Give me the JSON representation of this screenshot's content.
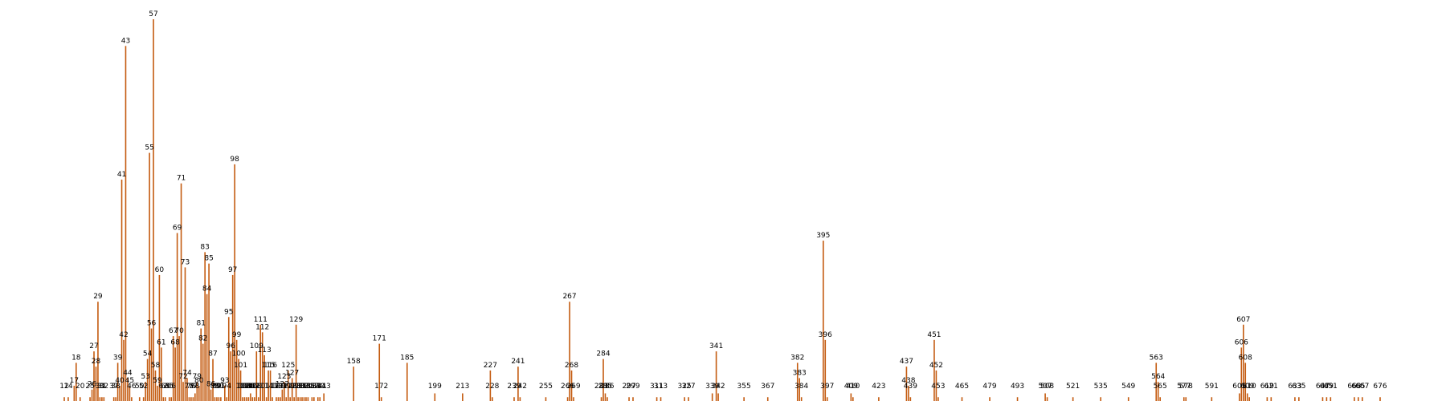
{
  "chart_data": {
    "type": "bar",
    "bar_color": "#c45b10",
    "ylim": [
      0,
      100
    ],
    "grid": false,
    "legend": "none",
    "title": "",
    "xlabel": "",
    "ylabel": "",
    "peaks": [
      {
        "x": 12,
        "label": "12",
        "value": 1
      },
      {
        "x": 14,
        "label": "14",
        "value": 1
      },
      {
        "x": 17,
        "label": "17",
        "value": 4
      },
      {
        "x": 18,
        "label": "18",
        "value": 10
      },
      {
        "x": 20,
        "label": "20",
        "value": 1
      },
      {
        "x": 25,
        "label": "25",
        "value": 1
      },
      {
        "x": 26,
        "label": "26",
        "value": 3
      },
      {
        "x": 27,
        "label": "27",
        "value": 13
      },
      {
        "x": 28,
        "label": "28",
        "value": 9
      },
      {
        "x": 29,
        "label": "29",
        "value": 26
      },
      {
        "x": 30,
        "label": "30",
        "value": 1
      },
      {
        "x": 31,
        "label": "31",
        "value": 1
      },
      {
        "x": 32,
        "label": "32",
        "value": 1
      },
      {
        "x": 37,
        "label": "37",
        "value": 1
      },
      {
        "x": 38,
        "label": "38",
        "value": 1
      },
      {
        "x": 39,
        "label": "39",
        "value": 10
      },
      {
        "x": 40,
        "label": "40",
        "value": 4
      },
      {
        "x": 41,
        "label": "41",
        "value": 58
      },
      {
        "x": 42,
        "label": "42",
        "value": 16
      },
      {
        "x": 43,
        "label": "43",
        "value": 93
      },
      {
        "x": 44,
        "label": "44",
        "value": 6
      },
      {
        "x": 45,
        "label": "45",
        "value": 4
      },
      {
        "x": 46,
        "label": "46",
        "value": 1
      },
      {
        "x": 50,
        "label": "50",
        "value": 1
      },
      {
        "x": 52,
        "label": "52",
        "value": 1
      },
      {
        "x": 53,
        "label": "53",
        "value": 5
      },
      {
        "x": 54,
        "label": "54",
        "value": 11
      },
      {
        "x": 55,
        "label": "55",
        "value": 65
      },
      {
        "x": 56,
        "label": "56",
        "value": 19
      },
      {
        "x": 57,
        "label": "57",
        "value": 100
      },
      {
        "x": 58,
        "label": "58",
        "value": 8
      },
      {
        "x": 59,
        "label": "59",
        "value": 4
      },
      {
        "x": 60,
        "label": "60",
        "value": 33
      },
      {
        "x": 61,
        "label": "61",
        "value": 14
      },
      {
        "x": 62,
        "label": "62",
        "value": 1
      },
      {
        "x": 63,
        "label": "63",
        "value": 1
      },
      {
        "x": 65,
        "label": "65",
        "value": 1
      },
      {
        "x": 66,
        "label": "66",
        "value": 1
      },
      {
        "x": 67,
        "label": "67",
        "value": 17
      },
      {
        "x": 68,
        "label": "68",
        "value": 14
      },
      {
        "x": 69,
        "label": "69",
        "value": 44
      },
      {
        "x": 70,
        "label": "70",
        "value": 17
      },
      {
        "x": 71,
        "label": "71",
        "value": 57
      },
      {
        "x": 72,
        "label": "72",
        "value": 5
      },
      {
        "x": 73,
        "label": "73",
        "value": 35
      },
      {
        "x": 74,
        "label": "74",
        "value": 6
      },
      {
        "x": 75,
        "label": "75",
        "value": 1
      },
      {
        "x": 76,
        "label": "76",
        "value": 1
      },
      {
        "x": 77,
        "label": "77",
        "value": 1
      },
      {
        "x": 78,
        "label": "78",
        "value": 2
      },
      {
        "x": 79,
        "label": "79",
        "value": 5
      },
      {
        "x": 80,
        "label": "80",
        "value": 4
      },
      {
        "x": 81,
        "label": "81",
        "value": 19
      },
      {
        "x": 82,
        "label": "82",
        "value": 15
      },
      {
        "x": 83,
        "label": "83",
        "value": 39
      },
      {
        "x": 84,
        "label": "84",
        "value": 28
      },
      {
        "x": 85,
        "label": "85",
        "value": 36
      },
      {
        "x": 86,
        "label": "86",
        "value": 3
      },
      {
        "x": 87,
        "label": "87",
        "value": 11
      },
      {
        "x": 88,
        "label": "88",
        "value": 1
      },
      {
        "x": 89,
        "label": "89",
        "value": 1
      },
      {
        "x": 90,
        "label": "90",
        "value": 1
      },
      {
        "x": 91,
        "label": "91",
        "value": 1
      },
      {
        "x": 93,
        "label": "93",
        "value": 4
      },
      {
        "x": 94,
        "label": "94",
        "value": 1
      },
      {
        "x": 95,
        "label": "95",
        "value": 22
      },
      {
        "x": 96,
        "label": "96",
        "value": 13
      },
      {
        "x": 97,
        "label": "97",
        "value": 33
      },
      {
        "x": 98,
        "label": "98",
        "value": 62
      },
      {
        "x": 99,
        "label": "99",
        "value": 16
      },
      {
        "x": 100,
        "label": "100",
        "value": 11
      },
      {
        "x": 101,
        "label": "101",
        "value": 8
      },
      {
        "x": 102,
        "label": "102",
        "value": 1
      },
      {
        "x": 103,
        "label": "103",
        "value": 1
      },
      {
        "x": 104,
        "label": "104",
        "value": 1
      },
      {
        "x": 105,
        "label": "105",
        "value": 1
      },
      {
        "x": 106,
        "label": "106",
        "value": 2
      },
      {
        "x": 107,
        "label": "107",
        "value": 1
      },
      {
        "x": 108,
        "label": "108",
        "value": 1
      },
      {
        "x": 109,
        "label": "109",
        "value": 13
      },
      {
        "x": 110,
        "label": "110",
        "value": 1
      },
      {
        "x": 111,
        "label": "111",
        "value": 20
      },
      {
        "x": 112,
        "label": "112",
        "value": 18
      },
      {
        "x": 113,
        "label": "113",
        "value": 12
      },
      {
        "x": 114,
        "label": "114",
        "value": 1
      },
      {
        "x": 115,
        "label": "115",
        "value": 8
      },
      {
        "x": 116,
        "label": "116",
        "value": 8
      },
      {
        "x": 117,
        "label": "117",
        "value": 1
      },
      {
        "x": 119,
        "label": "119",
        "value": 1
      },
      {
        "x": 120,
        "label": "120",
        "value": 1
      },
      {
        "x": 121,
        "label": "121",
        "value": 1
      },
      {
        "x": 122,
        "label": "122",
        "value": 3
      },
      {
        "x": 123,
        "label": "123",
        "value": 5
      },
      {
        "x": 124,
        "label": "124",
        "value": 1
      },
      {
        "x": 125,
        "label": "125",
        "value": 8
      },
      {
        "x": 126,
        "label": "126",
        "value": 1
      },
      {
        "x": 127,
        "label": "127",
        "value": 6
      },
      {
        "x": 128,
        "label": "128",
        "value": 1
      },
      {
        "x": 129,
        "label": "129",
        "value": 20
      },
      {
        "x": 130,
        "label": "130",
        "value": 1
      },
      {
        "x": 131,
        "label": "131",
        "value": 1
      },
      {
        "x": 132,
        "label": "132",
        "value": 1
      },
      {
        "x": 133,
        "label": "133",
        "value": 1
      },
      {
        "x": 134,
        "label": "134",
        "value": 1
      },
      {
        "x": 135,
        "label": "135",
        "value": 1
      },
      {
        "x": 137,
        "label": "137",
        "value": 1
      },
      {
        "x": 138,
        "label": "138",
        "value": 1
      },
      {
        "x": 140,
        "label": "140",
        "value": 1
      },
      {
        "x": 141,
        "label": "141",
        "value": 1
      },
      {
        "x": 143,
        "label": "143",
        "value": 2
      },
      {
        "x": 158,
        "label": "158",
        "value": 9
      },
      {
        "x": 171,
        "label": "171",
        "value": 15
      },
      {
        "x": 172,
        "label": "172",
        "value": 1
      },
      {
        "x": 185,
        "label": "185",
        "value": 10
      },
      {
        "x": 199,
        "label": "199",
        "value": 2
      },
      {
        "x": 213,
        "label": "213",
        "value": 2
      },
      {
        "x": 227,
        "label": "227",
        "value": 8
      },
      {
        "x": 228,
        "label": "228",
        "value": 1
      },
      {
        "x": 239,
        "label": "239",
        "value": 1
      },
      {
        "x": 241,
        "label": "241",
        "value": 9
      },
      {
        "x": 242,
        "label": "242",
        "value": 1
      },
      {
        "x": 255,
        "label": "255",
        "value": 1
      },
      {
        "x": 266,
        "label": "266",
        "value": 1
      },
      {
        "x": 267,
        "label": "267",
        "value": 26
      },
      {
        "x": 268,
        "label": "268",
        "value": 8
      },
      {
        "x": 269,
        "label": "269",
        "value": 1
      },
      {
        "x": 283,
        "label": "283",
        "value": 1
      },
      {
        "x": 284,
        "label": "284",
        "value": 11
      },
      {
        "x": 285,
        "label": "285",
        "value": 2
      },
      {
        "x": 286,
        "label": "286",
        "value": 1
      },
      {
        "x": 297,
        "label": "297",
        "value": 1
      },
      {
        "x": 299,
        "label": "299",
        "value": 1
      },
      {
        "x": 311,
        "label": "311",
        "value": 1
      },
      {
        "x": 313,
        "label": "313",
        "value": 1
      },
      {
        "x": 325,
        "label": "325",
        "value": 1
      },
      {
        "x": 327,
        "label": "327",
        "value": 1
      },
      {
        "x": 339,
        "label": "339",
        "value": 2
      },
      {
        "x": 341,
        "label": "341",
        "value": 13
      },
      {
        "x": 342,
        "label": "342",
        "value": 2
      },
      {
        "x": 355,
        "label": "355",
        "value": 1
      },
      {
        "x": 367,
        "label": "367",
        "value": 1
      },
      {
        "x": 382,
        "label": "382",
        "value": 10
      },
      {
        "x": 383,
        "label": "383",
        "value": 6
      },
      {
        "x": 384,
        "label": "384",
        "value": 1
      },
      {
        "x": 395,
        "label": "395",
        "value": 42
      },
      {
        "x": 396,
        "label": "396",
        "value": 16
      },
      {
        "x": 397,
        "label": "397",
        "value": 1
      },
      {
        "x": 409,
        "label": "409",
        "value": 2
      },
      {
        "x": 410,
        "label": "410",
        "value": 1
      },
      {
        "x": 423,
        "label": "423",
        "value": 1
      },
      {
        "x": 437,
        "label": "437",
        "value": 9
      },
      {
        "x": 438,
        "label": "438",
        "value": 4
      },
      {
        "x": 439,
        "label": "439",
        "value": 1
      },
      {
        "x": 451,
        "label": "451",
        "value": 16
      },
      {
        "x": 452,
        "label": "452",
        "value": 8
      },
      {
        "x": 453,
        "label": "453",
        "value": 1
      },
      {
        "x": 465,
        "label": "465",
        "value": 1
      },
      {
        "x": 479,
        "label": "479",
        "value": 1
      },
      {
        "x": 493,
        "label": "493",
        "value": 1
      },
      {
        "x": 507,
        "label": "507",
        "value": 2
      },
      {
        "x": 508,
        "label": "508",
        "value": 1
      },
      {
        "x": 521,
        "label": "521",
        "value": 1
      },
      {
        "x": 535,
        "label": "535",
        "value": 1
      },
      {
        "x": 549,
        "label": "549",
        "value": 1
      },
      {
        "x": 563,
        "label": "563",
        "value": 10
      },
      {
        "x": 564,
        "label": "564",
        "value": 5
      },
      {
        "x": 565,
        "label": "565",
        "value": 1
      },
      {
        "x": 577,
        "label": "577",
        "value": 1
      },
      {
        "x": 578,
        "label": "578",
        "value": 1
      },
      {
        "x": 591,
        "label": "591",
        "value": 1
      },
      {
        "x": 605,
        "label": "605",
        "value": 2
      },
      {
        "x": 606,
        "label": "606",
        "value": 14
      },
      {
        "x": 607,
        "label": "607",
        "value": 20
      },
      {
        "x": 608,
        "label": "608",
        "value": 10
      },
      {
        "x": 609,
        "label": "609",
        "value": 2
      },
      {
        "x": 610,
        "label": "610",
        "value": 1
      },
      {
        "x": 619,
        "label": "619",
        "value": 1
      },
      {
        "x": 621,
        "label": "621",
        "value": 1
      },
      {
        "x": 633,
        "label": "633",
        "value": 1
      },
      {
        "x": 635,
        "label": "635",
        "value": 1
      },
      {
        "x": 647,
        "label": "647",
        "value": 1
      },
      {
        "x": 649,
        "label": "649",
        "value": 1
      },
      {
        "x": 651,
        "label": "651",
        "value": 1
      },
      {
        "x": 663,
        "label": "663",
        "value": 1
      },
      {
        "x": 665,
        "label": "665",
        "value": 1
      },
      {
        "x": 667,
        "label": "667",
        "value": 1
      },
      {
        "x": 676,
        "label": "676",
        "value": 1
      }
    ]
  }
}
